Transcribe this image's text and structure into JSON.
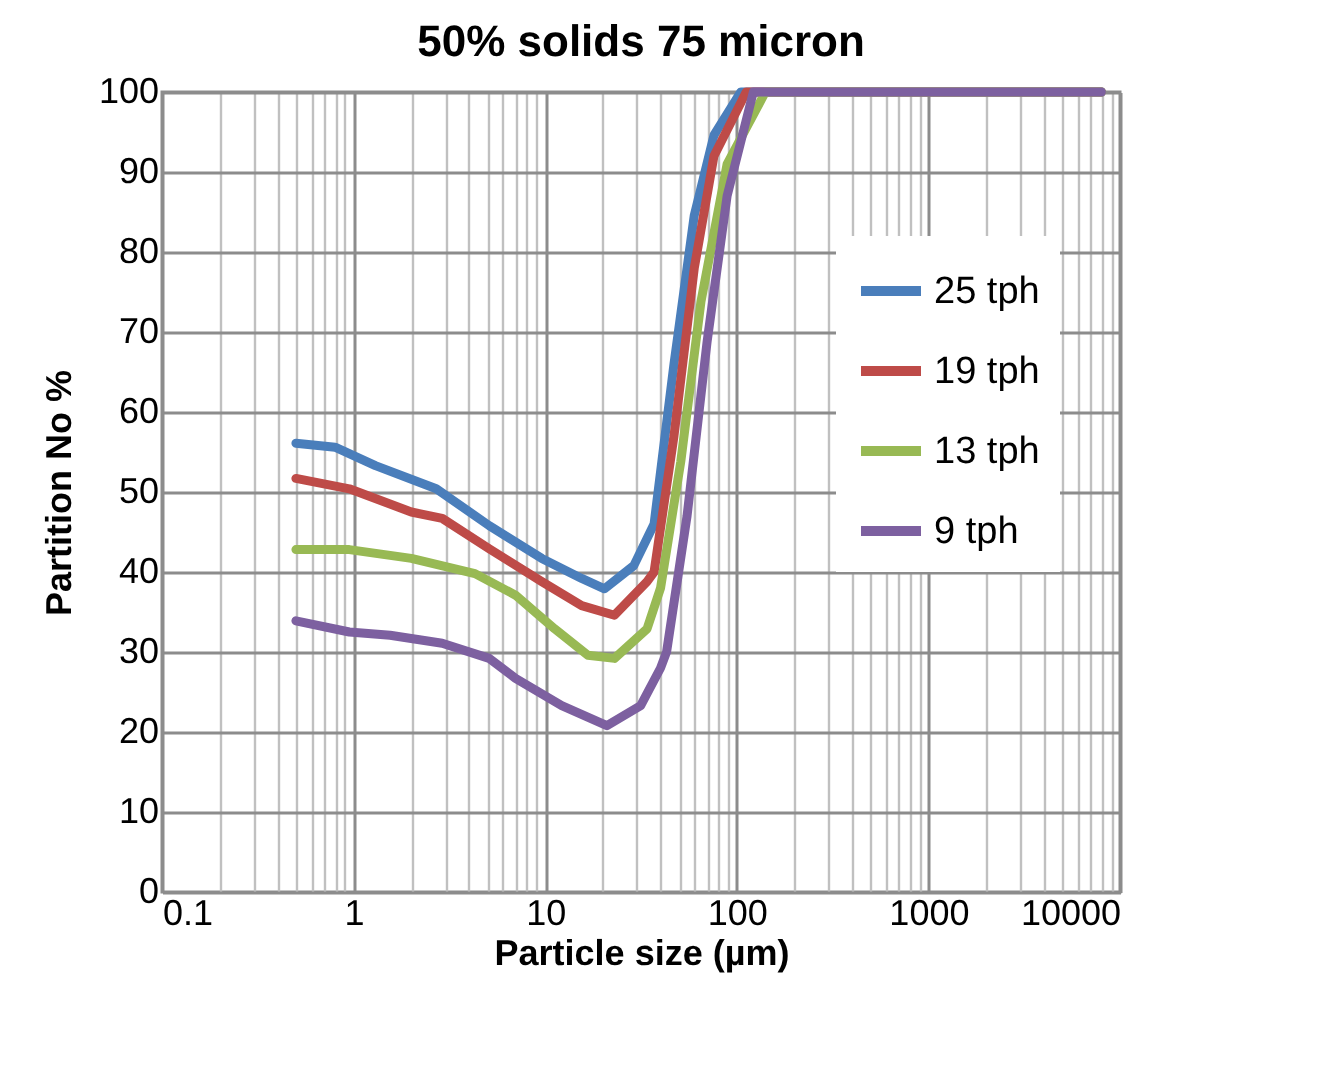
{
  "chart_data": {
    "type": "line",
    "title": "50% solids 75 micron",
    "xlabel": "Particle size (µm)",
    "ylabel": "Partition No %",
    "log": "x",
    "grid": true,
    "legend": "right",
    "marker": "none",
    "line_style": "solid",
    "xlim": [
      0.1,
      10000
    ],
    "xticks": [
      0.1,
      1,
      10,
      100,
      1000,
      10000
    ],
    "ylim": [
      0,
      100
    ],
    "yticks": [
      0,
      10,
      20,
      30,
      40,
      50,
      60,
      70,
      80,
      90,
      100
    ],
    "series": [
      {
        "name": "25 tph",
        "color": "#4a7ebb",
        "x": [
          0.5,
          0.8,
          1.3,
          2.7,
          5.1,
          9.6,
          15.5,
          20.4,
          29,
          37,
          47,
          60,
          76,
          105,
          8000
        ],
        "values": [
          56.1,
          55.6,
          53.3,
          50.4,
          45.8,
          41.7,
          39.2,
          37.9,
          40.8,
          46,
          66,
          84.6,
          94.6,
          100,
          100
        ]
      },
      {
        "name": "19 tph",
        "color": "#be4b48",
        "x": [
          0.5,
          0.95,
          2,
          2.9,
          5.1,
          9.6,
          15.5,
          23,
          34,
          37,
          47,
          60,
          76,
          112,
          8000
        ],
        "values": [
          51.7,
          50.4,
          47.5,
          46.7,
          42.9,
          38.8,
          35.8,
          34.6,
          38.8,
          40,
          57,
          78,
          92,
          100,
          100
        ]
      },
      {
        "name": "13 tph",
        "color": "#98b954",
        "x": [
          0.5,
          0.95,
          2,
          4.3,
          7,
          11.2,
          16.7,
          23,
          34,
          40,
          51,
          65,
          89,
          141,
          8000
        ],
        "values": [
          42.8,
          42.8,
          41.7,
          39.8,
          37.1,
          32.9,
          29.6,
          29.2,
          32.9,
          38,
          53.8,
          73.8,
          91,
          100,
          100
        ]
      },
      {
        "name": "9 tph",
        "color": "#7d60a0",
        "x": [
          0.5,
          0.95,
          1.55,
          2.9,
          5.1,
          7,
          12.2,
          21,
          31.5,
          40,
          43,
          55,
          70,
          89,
          122,
          8000
        ],
        "values": [
          33.9,
          32.5,
          32.1,
          31.1,
          29.2,
          26.7,
          23.3,
          20.8,
          23.3,
          28,
          30,
          47,
          68.8,
          87,
          100,
          100
        ]
      }
    ]
  }
}
